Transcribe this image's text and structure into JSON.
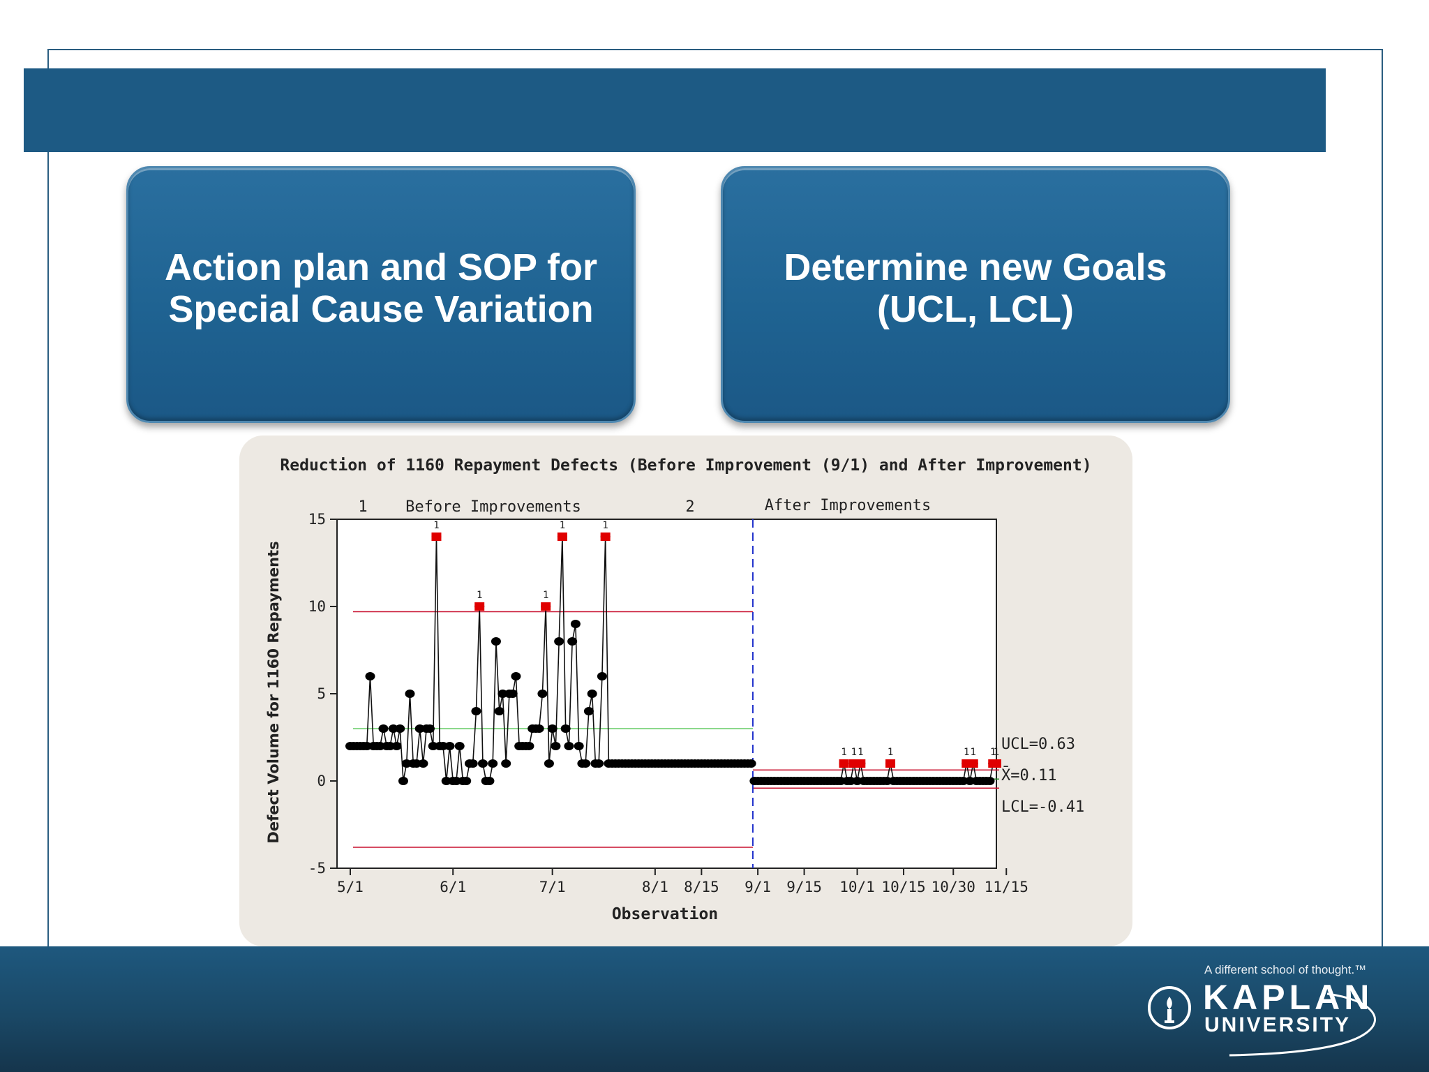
{
  "slide": {
    "title": "",
    "box_left": "Action plan and SOP for\nSpecial Cause Variation",
    "box_right": "Determine new Goals\n(UCL, LCL)"
  },
  "footer": {
    "tagline": "A different school of thought.™",
    "brand_line1": "KAPLAN",
    "brand_line2": "UNIVERSITY",
    "logo_icon": "torch-emblem-icon"
  },
  "colors": {
    "title_band": "#1d5a84",
    "box_fill": "#1f6392",
    "chart_panel": "#ede9e3",
    "control_limit": "#c8102e",
    "mean_line_before": "#66cc66",
    "phase_divider": "#2233cc",
    "out_of_control": "#e00000"
  },
  "chart_data": {
    "type": "line",
    "title": "Reduction of 1160 Repayment Defects (Before Improvement (9/1) and After Improvement)",
    "xlabel": "Observation",
    "ylabel": "Defect Volume for 1160 Repayments",
    "ylim": [
      -5,
      15
    ],
    "yticks": [
      "15",
      "10",
      "5",
      "0",
      "-5"
    ],
    "yticks_values": [
      15,
      10,
      5,
      0,
      -5
    ],
    "xticks": [
      "5/1",
      "6/1",
      "7/1",
      "8/1",
      "8/15",
      "9/1",
      "9/15",
      "10/1",
      "10/15",
      "10/30",
      "11/15"
    ],
    "phases": [
      {
        "number": "1",
        "label": "Before Improvements"
      },
      {
        "number": "2",
        "label": "After Improvements"
      }
    ],
    "grid": false,
    "x_day_range": [
      -4,
      195
    ],
    "phase_split_day": 121.5,
    "xtick_days": [
      0,
      31,
      61,
      92,
      106,
      123,
      137,
      153,
      167,
      182,
      198
    ],
    "limits_phase1": {
      "ucl": 9.7,
      "center": 3.0,
      "lcl": -3.8
    },
    "limits_phase2": {
      "ucl": 0.63,
      "center": 0.11,
      "lcl": -0.41
    },
    "limit_labels": [
      "UCL=0.63",
      "X̄=0.11",
      "LCL=-0.41"
    ],
    "flag_label": "1",
    "series": [
      {
        "phase": 1,
        "x": [
          0,
          1,
          2,
          3,
          4,
          5,
          6,
          7,
          8,
          9,
          10,
          11,
          12,
          13,
          14,
          15,
          16,
          17,
          18,
          19,
          20,
          21,
          22,
          23,
          24,
          25,
          26,
          27,
          28,
          29,
          30,
          31,
          32,
          33,
          34,
          35,
          36,
          37,
          38,
          39,
          40,
          41,
          42,
          43,
          44,
          45,
          46,
          47,
          48,
          49,
          50,
          51,
          52,
          53,
          54,
          55,
          56,
          57,
          58,
          59,
          60,
          61,
          62,
          63,
          64,
          65,
          66,
          67,
          68,
          69,
          70,
          71,
          72,
          73,
          74,
          75,
          76,
          77,
          78,
          79,
          80,
          81,
          82,
          83,
          84,
          85,
          86,
          87,
          88,
          89,
          90,
          91,
          92,
          93,
          94,
          95,
          96,
          97,
          98,
          99,
          100,
          101,
          102,
          103,
          104,
          105,
          106,
          107,
          108,
          109,
          110,
          111,
          112,
          113,
          114,
          115,
          116,
          117,
          118,
          119,
          120,
          121
        ],
        "y": [
          2,
          2,
          2,
          2,
          2,
          2,
          6,
          2,
          2,
          2,
          3,
          2,
          2,
          3,
          2,
          3,
          0,
          1,
          5,
          1,
          1,
          3,
          1,
          3,
          3,
          2,
          14,
          2,
          2,
          0,
          2,
          0,
          0,
          2,
          0,
          0,
          1,
          1,
          4,
          10,
          1,
          0,
          0,
          1,
          8,
          4,
          5,
          1,
          5,
          5,
          6,
          2,
          2,
          2,
          2,
          3,
          3,
          3,
          5,
          10,
          1,
          3,
          2,
          8,
          14,
          3,
          2,
          8,
          9,
          2,
          1,
          1,
          4,
          5,
          1,
          1,
          6,
          14,
          1,
          1,
          1,
          1,
          1,
          1,
          1,
          1,
          1,
          1,
          1,
          1,
          1,
          1,
          1,
          1,
          1,
          1,
          1,
          1,
          1,
          1,
          1,
          1,
          1,
          1,
          1,
          1,
          1,
          1,
          1,
          1,
          1,
          1,
          1,
          1,
          1,
          1,
          1,
          1,
          1,
          1,
          1,
          1
        ]
      },
      {
        "phase": 2,
        "x": [
          122,
          123,
          124,
          125,
          126,
          127,
          128,
          129,
          130,
          131,
          132,
          133,
          134,
          135,
          136,
          137,
          138,
          139,
          140,
          141,
          142,
          143,
          144,
          145,
          146,
          147,
          148,
          149,
          150,
          151,
          152,
          153,
          154,
          155,
          156,
          157,
          158,
          159,
          160,
          161,
          162,
          163,
          164,
          165,
          166,
          167,
          168,
          169,
          170,
          171,
          172,
          173,
          174,
          175,
          176,
          177,
          178,
          179,
          180,
          181,
          182,
          183,
          184,
          185,
          186,
          187,
          188,
          189,
          190,
          191,
          192,
          193,
          194,
          195
        ],
        "y": [
          0,
          0,
          0,
          0,
          0,
          0,
          0,
          0,
          0,
          0,
          0,
          0,
          0,
          0,
          0,
          0,
          0,
          0,
          0,
          0,
          0,
          0,
          0,
          0,
          0,
          0,
          0,
          1,
          0,
          0,
          1,
          0,
          1,
          0,
          0,
          0,
          0,
          0,
          0,
          0,
          0,
          1,
          0,
          0,
          0,
          0,
          0,
          0,
          0,
          0,
          0,
          0,
          0,
          0,
          0,
          0,
          0,
          0,
          0,
          0,
          0,
          0,
          0,
          0,
          1,
          0,
          1,
          0,
          0,
          0,
          0,
          0,
          1,
          1
        ]
      }
    ],
    "flagged_points": [
      {
        "x": 26,
        "y": 14
      },
      {
        "x": 39,
        "y": 10
      },
      {
        "x": 59,
        "y": 10
      },
      {
        "x": 64,
        "y": 14
      },
      {
        "x": 77,
        "y": 14
      },
      {
        "x": 149,
        "y": 1
      },
      {
        "x": 152,
        "y": 1
      },
      {
        "x": 154,
        "y": 1
      },
      {
        "x": 163,
        "y": 1
      },
      {
        "x": 186,
        "y": 1
      },
      {
        "x": 188,
        "y": 1
      },
      {
        "x": 194,
        "y": 1
      },
      {
        "x": 195,
        "y": 1
      }
    ]
  }
}
